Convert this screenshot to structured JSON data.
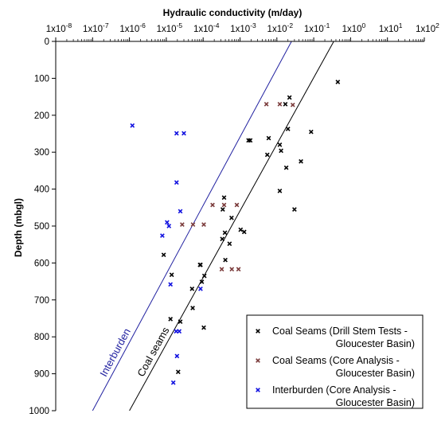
{
  "chart_data": {
    "type": "scatter",
    "title": "",
    "xlabel": "Hydraulic conductivity (m/day)",
    "ylabel": "Depth (mbgl)",
    "x_scale": "log",
    "x_axis_position": "top",
    "y_inverted": true,
    "xlim": [
      1e-08,
      100
    ],
    "ylim": [
      0,
      1000
    ],
    "x_ticks": [
      1e-08,
      1e-07,
      1e-06,
      1e-05,
      0.0001,
      0.001,
      0.01,
      0.1,
      1,
      10,
      100
    ],
    "x_tick_labels": [
      {
        "base": "1x10",
        "exp": "-8"
      },
      {
        "base": "1x10",
        "exp": "-7"
      },
      {
        "base": "1x10",
        "exp": "-6"
      },
      {
        "base": "1x10",
        "exp": "-5"
      },
      {
        "base": "1x10",
        "exp": "-4"
      },
      {
        "base": "1x10",
        "exp": "-3"
      },
      {
        "base": "1x10",
        "exp": "-2"
      },
      {
        "base": "1x10",
        "exp": "-1"
      },
      {
        "base": "1x10",
        "exp": "0"
      },
      {
        "base": "1x10",
        "exp": "1"
      },
      {
        "base": "1x10",
        "exp": "2"
      }
    ],
    "y_ticks": [
      0,
      100,
      200,
      300,
      400,
      500,
      600,
      700,
      800,
      900,
      1000
    ],
    "y_tick_labels": [
      "0",
      "100",
      "200",
      "300",
      "400",
      "500",
      "600",
      "700",
      "800",
      "900",
      "1000"
    ],
    "grid": false,
    "legend_position": "bottom-right",
    "series": [
      {
        "name": "Coal Seams (Drill Stem Tests - Gloucester Basin)",
        "color": "#000000",
        "marker": "x",
        "points": [
          [
            0.45,
            110
          ],
          [
            0.022,
            152
          ],
          [
            0.017,
            170
          ],
          [
            0.02,
            237
          ],
          [
            0.085,
            245
          ],
          [
            0.0017,
            268
          ],
          [
            0.0019,
            268
          ],
          [
            0.006,
            262
          ],
          [
            0.012,
            280
          ],
          [
            0.013,
            296
          ],
          [
            0.0055,
            307
          ],
          [
            0.045,
            325
          ],
          [
            0.018,
            342
          ],
          [
            0.012,
            405
          ],
          [
            0.03,
            455
          ],
          [
            0.00037,
            423
          ],
          [
            0.00034,
            455
          ],
          [
            0.00059,
            478
          ],
          [
            0.00104,
            510
          ],
          [
            0.0013,
            516
          ],
          [
            0.00039,
            518
          ],
          [
            0.00033,
            535
          ],
          [
            0.00052,
            548
          ],
          [
            8.5e-06,
            578
          ],
          [
            8.2e-05,
            605
          ],
          [
            8.5e-05,
            605
          ],
          [
            0.0004,
            592
          ],
          [
            1.4e-05,
            632
          ],
          [
            0.000108,
            635
          ],
          [
            9.2e-05,
            651
          ],
          [
            5e-05,
            670
          ],
          [
            2.4e-05,
            759
          ],
          [
            5.2e-05,
            722
          ],
          [
            1.3e-05,
            752
          ],
          [
            0.000104,
            775
          ],
          [
            2.1e-05,
            895
          ]
        ]
      },
      {
        "name": "Coal Seams (Core Analysis - Gloucester Basin)",
        "color": "#7a3a3a",
        "marker": "x",
        "points": [
          [
            0.0052,
            170
          ],
          [
            0.012,
            170
          ],
          [
            0.027,
            172
          ],
          [
            2.7e-05,
            496
          ],
          [
            5.3e-05,
            496
          ],
          [
            0.000104,
            496
          ],
          [
            0.00018,
            443
          ],
          [
            0.00037,
            443
          ],
          [
            0.00082,
            443
          ],
          [
            0.00032,
            617
          ],
          [
            0.0006,
            617
          ],
          [
            0.00091,
            617
          ]
        ]
      },
      {
        "name": "Interburden (Core Analysis - Gloucester Basin)",
        "color": "#1010e0",
        "marker": "x",
        "points": [
          [
            1.2e-06,
            228
          ],
          [
            1.9e-05,
            249
          ],
          [
            3e-05,
            249
          ],
          [
            1.9e-05,
            382
          ],
          [
            2.4e-05,
            460
          ],
          [
            1.05e-05,
            490
          ],
          [
            1.18e-05,
            500
          ],
          [
            7.8e-06,
            526
          ],
          [
            1.3e-05,
            658
          ],
          [
            1.85e-05,
            785
          ],
          [
            2.25e-05,
            785
          ],
          [
            1.95e-05,
            852
          ],
          [
            1.55e-05,
            924
          ],
          [
            8.5e-05,
            670
          ]
        ]
      }
    ],
    "trend_lines": [
      {
        "label": "Interburden",
        "color": "#2020a0",
        "points": [
          [
            1e-07,
            1000
          ],
          [
            0.025,
            0
          ]
        ]
      },
      {
        "label": "Coal seams",
        "color": "#000000",
        "points": [
          [
            1e-06,
            1000
          ],
          [
            0.35,
            0
          ]
        ]
      }
    ]
  }
}
